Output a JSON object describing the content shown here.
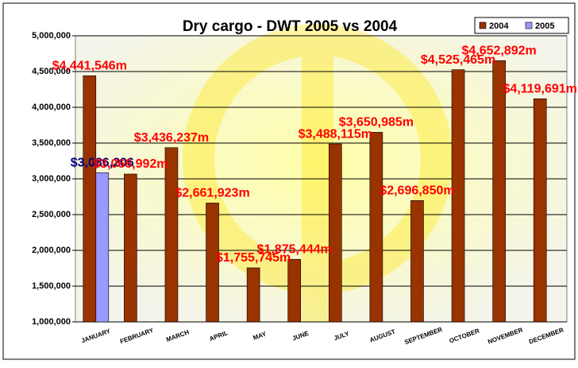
{
  "chart_data": {
    "type": "bar",
    "title": "Dry cargo - DWT 2005 vs 2004",
    "categories": [
      "JANUARY",
      "FEBRUARY",
      "MARCH",
      "APRIL",
      "MAY",
      "JUNE",
      "JULY",
      "AUGUST",
      "SEPTEMBER",
      "OCTOBER",
      "NOVEMBER",
      "DECEMBER"
    ],
    "series": [
      {
        "name": "2004",
        "color": "#993300",
        "values": [
          4441546,
          3066992,
          3436237,
          2661923,
          1755745,
          1875444,
          3488115,
          3650985,
          2696850,
          4525465,
          4652892,
          4119691
        ],
        "value_labels": [
          "$4,441,546m",
          "$3,066,992m",
          "$3,436,237m",
          "$2,661,923m",
          "$1,755,745m",
          "$1,875,444m",
          "$3,488,115m",
          "$3,650,985m",
          "$2,696,850m",
          "$4,525,465m",
          "$4,652,892m",
          "$4,119,691m"
        ],
        "label_color": "#ff0000"
      },
      {
        "name": "2005",
        "color": "#9999ff",
        "values": [
          3086206,
          null,
          null,
          null,
          null,
          null,
          null,
          null,
          null,
          null,
          null,
          null
        ],
        "value_labels": [
          "$3,086,206",
          null,
          null,
          null,
          null,
          null,
          null,
          null,
          null,
          null,
          null,
          null
        ],
        "label_color": "#000080"
      }
    ],
    "ylim": [
      1000000,
      5000000
    ],
    "yticks": [
      {
        "value": 1000000,
        "label": "1,000,000"
      },
      {
        "value": 1500000,
        "label": "1,500,000"
      },
      {
        "value": 2000000,
        "label": "2,000,000"
      },
      {
        "value": 2500000,
        "label": "2,500,000"
      },
      {
        "value": 3000000,
        "label": "3,000,000"
      },
      {
        "value": 3500000,
        "label": "3,500,000"
      },
      {
        "value": 4000000,
        "label": "4,000,000"
      },
      {
        "value": 4500000,
        "label": "4,500,000"
      },
      {
        "value": 5000000,
        "label": "5,000,000"
      }
    ],
    "grid": true,
    "legend": "top-right"
  }
}
